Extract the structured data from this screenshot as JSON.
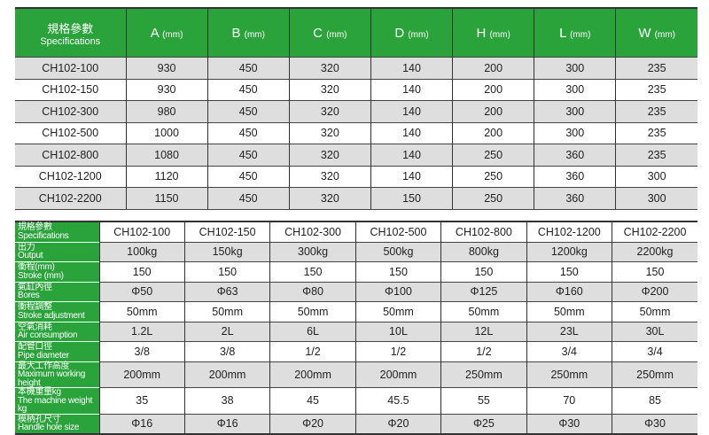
{
  "table1": {
    "header": {
      "cn": "規格參數",
      "en": "Specifications",
      "unit": "(mm)",
      "cols": [
        "A",
        "B",
        "C",
        "D",
        "H",
        "L",
        "W"
      ]
    },
    "rows": [
      [
        "CH102-100",
        "930",
        "450",
        "320",
        "140",
        "200",
        "300",
        "235"
      ],
      [
        "CH102-150",
        "930",
        "450",
        "320",
        "140",
        "200",
        "300",
        "235"
      ],
      [
        "CH102-300",
        "980",
        "450",
        "320",
        "140",
        "200",
        "300",
        "235"
      ],
      [
        "CH102-500",
        "1000",
        "450",
        "320",
        "140",
        "200",
        "300",
        "235"
      ],
      [
        "CH102-800",
        "1080",
        "450",
        "320",
        "140",
        "250",
        "360",
        "235"
      ],
      [
        "CH102-1200",
        "1120",
        "450",
        "320",
        "140",
        "250",
        "360",
        "300"
      ],
      [
        "CH102-2200",
        "1150",
        "450",
        "320",
        "150",
        "250",
        "360",
        "300"
      ]
    ]
  },
  "table2": {
    "rows": [
      {
        "cn": "規格參數",
        "en": "Specifications",
        "vals": [
          "CH102-100",
          "CH102-150",
          "CH102-300",
          "CH102-500",
          "CH102-800",
          "CH102-1200",
          "CH102-2200"
        ]
      },
      {
        "cn": "出力",
        "en": "Output",
        "vals": [
          "100kg",
          "150kg",
          "300kg",
          "500kg",
          "800kg",
          "1200kg",
          "2200kg"
        ]
      },
      {
        "cn": "衝程(mm)",
        "en": "Stroke (mm)",
        "vals": [
          "150",
          "150",
          "150",
          "150",
          "150",
          "150",
          "150"
        ]
      },
      {
        "cn": "氣缸內徑",
        "en": "Bores",
        "vals": [
          "Φ50",
          "Φ63",
          "Φ80",
          "Φ100",
          "Φ125",
          "Φ160",
          "Φ200"
        ]
      },
      {
        "cn": "衝程調整",
        "en": "Stroke adjustment",
        "vals": [
          "50mm",
          "50mm",
          "50mm",
          "50mm",
          "50mm",
          "50mm",
          "50mm"
        ]
      },
      {
        "cn": "空氣消耗",
        "en": "Air consumption",
        "vals": [
          "1.2L",
          "2L",
          "6L",
          "10L",
          "12L",
          "23L",
          "30L"
        ]
      },
      {
        "cn": "配管口徑",
        "en": "Pipe diameter",
        "vals": [
          "3/8",
          "3/8",
          "1/2",
          "1/2",
          "1/2",
          "3/4",
          "3/4"
        ]
      },
      {
        "cn": "最大工作高度",
        "en": "Maximum working height",
        "vals": [
          "200mm",
          "200mm",
          "200mm",
          "200mm",
          "250mm",
          "250mm",
          "250mm"
        ]
      },
      {
        "cn": "本機重量kg",
        "en": "The machine weight kg",
        "vals": [
          "35",
          "38",
          "45",
          "45.5",
          "55",
          "70",
          "85"
        ]
      },
      {
        "cn": "模柄孔尺寸",
        "en": "Handle hole size",
        "vals": [
          "Φ16",
          "Φ16",
          "Φ20",
          "Φ20",
          "Φ25",
          "Φ30",
          "Φ30"
        ]
      }
    ]
  },
  "colors": {
    "header_green": "#2aa33b",
    "row_gray": "#dedede"
  }
}
